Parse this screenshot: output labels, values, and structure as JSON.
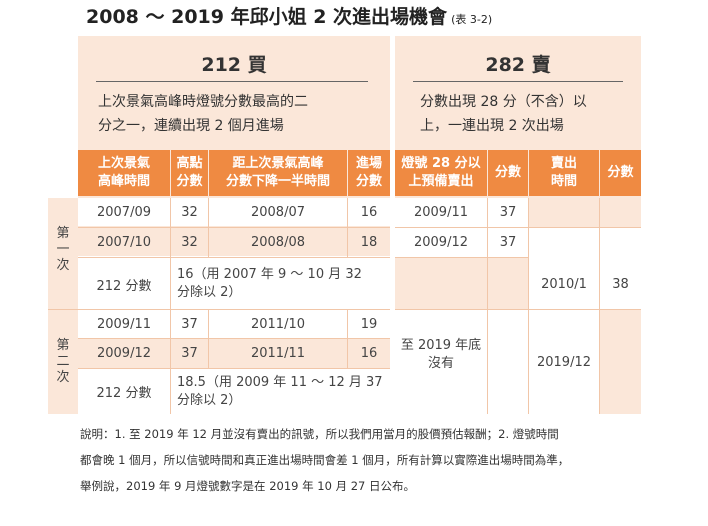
{
  "title": {
    "main": "2008 ～ 2019 年邱小姐 2 次進出場機會",
    "sub": "(表 3-2)"
  },
  "buy": {
    "heading": "212 買",
    "desc_line1": "上次景氣高峰時燈號分數最高的二",
    "desc_line2": "分之一，連續出現 2 個月進場",
    "headers": {
      "c1_l1": "上次景氣",
      "c1_l2": "高峰時間",
      "c2_l1": "高點",
      "c2_l2": "分數",
      "c3_l1": "距上次景氣高峰",
      "c3_l2": "分數下降一半時間",
      "c4_l1": "進場",
      "c4_l2": "分數"
    },
    "group1": {
      "label_l1": "第",
      "label_l2": "一",
      "label_l3": "次",
      "row1": {
        "peak": "2007/09",
        "score": "32",
        "half": "2008/07",
        "entry": "16"
      },
      "row2": {
        "peak": "2007/10",
        "score": "32",
        "half": "2008/08",
        "entry": "18"
      },
      "row3": {
        "label": "212 分數",
        "note_l1": "16（用 2007 年 9 ～ 10 月 32",
        "note_l2": "分除以 2）"
      }
    },
    "group2": {
      "label_l1": "第",
      "label_l2": "二",
      "label_l3": "次",
      "row1": {
        "peak": "2009/11",
        "score": "37",
        "half": "2011/10",
        "entry": "19"
      },
      "row2": {
        "peak": "2009/12",
        "score": "37",
        "half": "2011/11",
        "entry": "16"
      },
      "row3": {
        "label": "212 分數",
        "note_l1": "18.5（用 2009 年 11 ～ 12 月 37",
        "note_l2": "分除以 2）"
      }
    }
  },
  "sell": {
    "heading": "282 賣",
    "desc_line1": "分數出現 28 分（不含）以",
    "desc_line2": "上，一連出現 2 次出場",
    "headers": {
      "c1_l1": "燈號 28 分以",
      "c1_l2": "上預備賣出",
      "c2": "分數",
      "c3_l1": "賣出",
      "c3_l2": "時間",
      "c4": "分數"
    },
    "group1": {
      "row1": {
        "time": "2009/11",
        "score": "37"
      },
      "row2": {
        "time": "2009/12",
        "score": "37"
      },
      "row3": {
        "sell_time": "2010/1",
        "sell_score": "38"
      }
    },
    "group2": {
      "wait_l1": "至 2019 年底",
      "wait_l2": "沒有",
      "sell_time": "2019/12"
    }
  },
  "notes": {
    "line1": "說明：1. 至 2019 年 12 月並沒有賣出的訊號，所以我們用當月的股價預估報酬；2. 燈號時間",
    "line2": "都會晚 1 個月，所以信號時間和真正進出場時間會差 1 個月，所有計算以實際進出場時間為準，",
    "line3": "舉例說，2019 年 9 月燈號數字是在 2019 年 10 月 27 日公布。"
  }
}
